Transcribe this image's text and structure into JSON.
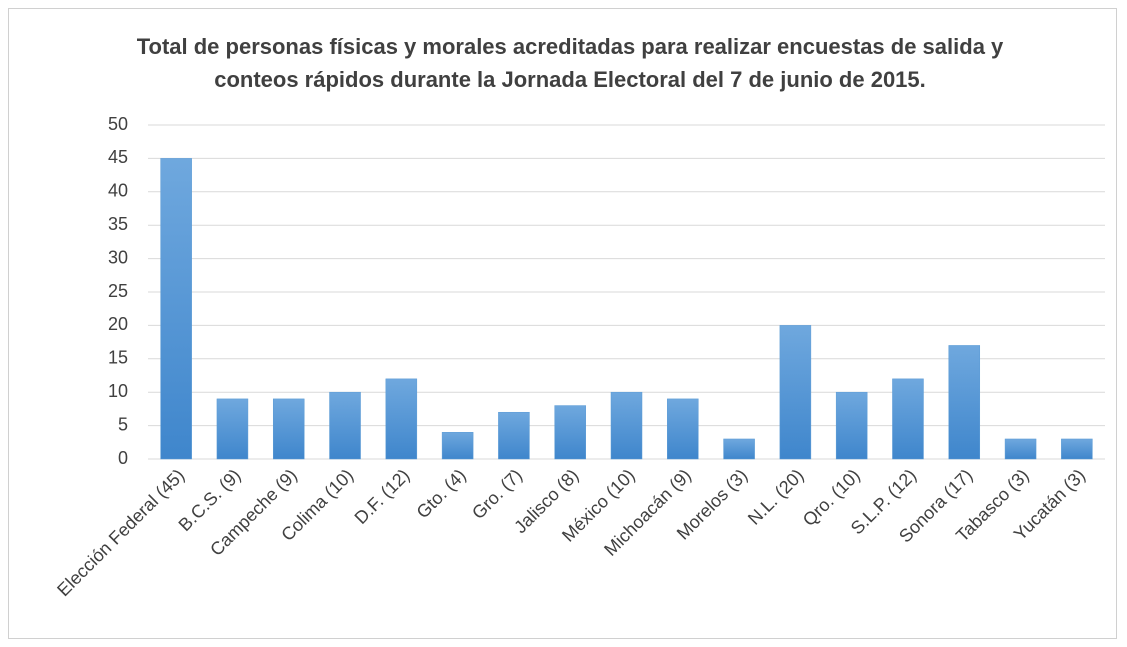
{
  "chart_data": {
    "type": "bar",
    "title": "Total de personas físicas y morales acreditadas para realizar encuestas de salida y conteos rápidos durante la Jornada Electoral del 7 de junio de 2015.",
    "categories": [
      "Elección Federal (45)",
      "B.C.S. (9)",
      "Campeche (9)",
      "Colima (10)",
      "D.F. (12)",
      "Gto. (4)",
      "Gro. (7)",
      "Jalisco (8)",
      "México (10)",
      "Michoacán (9)",
      "Morelos (3)",
      "N.L. (20)",
      "Qro. (10)",
      "S.L.P. (12)",
      "Sonora (17)",
      "Tabasco (3)",
      "Yucatán (3)"
    ],
    "values": [
      45,
      9,
      9,
      10,
      12,
      4,
      7,
      8,
      10,
      9,
      3,
      20,
      10,
      12,
      17,
      3,
      3
    ],
    "color": "#5b9bd5",
    "ylim": [
      0,
      50
    ],
    "yticks": [
      0,
      5,
      10,
      15,
      20,
      25,
      30,
      35,
      40,
      45,
      50
    ],
    "grid": true
  }
}
